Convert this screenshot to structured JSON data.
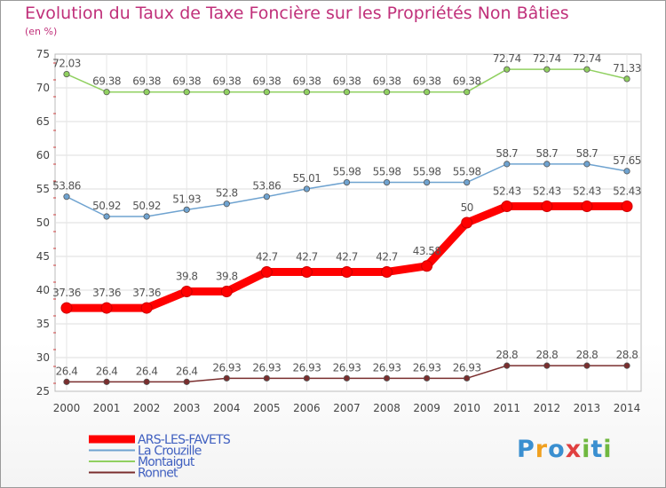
{
  "title": "Evolution du Taux de Taxe Foncière sur les Propriétés Non Bâties",
  "subtitle": "(en %)",
  "logo": {
    "letters": [
      "P",
      "r",
      "o",
      "x",
      "i",
      "t",
      "i"
    ],
    "colors": [
      "#3a8fd0",
      "#f0a020",
      "#3a8fd0",
      "#e04040",
      "#70b840",
      "#3a8fd0",
      "#70b840"
    ]
  },
  "chart_data": {
    "type": "line",
    "title": "Evolution du Taux de Taxe Foncière sur les Propriétés Non Bâties",
    "ylabel": "(en %)",
    "xlabel": "",
    "ylim": [
      25,
      75
    ],
    "yticks": [
      25,
      30,
      35,
      40,
      45,
      50,
      55,
      60,
      65,
      70,
      75
    ],
    "grid": true,
    "legend": "bottom-left",
    "x": [
      "2000",
      "2001",
      "2002",
      "2003",
      "2004",
      "2005",
      "2006",
      "2007",
      "2008",
      "2009",
      "2010",
      "2011",
      "2012",
      "2013",
      "2014"
    ],
    "series": [
      {
        "name": "ARS-LES-FAVETS",
        "color": "#ff0000",
        "thick": true,
        "values": [
          37.36,
          37.36,
          37.36,
          39.8,
          39.8,
          42.7,
          42.7,
          42.7,
          42.7,
          43.58,
          50,
          52.43,
          52.43,
          52.43,
          52.43
        ],
        "labels": [
          "37.36",
          "37.36",
          "37.36",
          "39.8",
          "39.8",
          "42.7",
          "42.7",
          "42.7",
          "42.7",
          "43.58",
          "50",
          "52.43",
          "52.43",
          "52.43",
          "52.43"
        ]
      },
      {
        "name": "La Crouzille",
        "color": "#6fa3d0",
        "thick": false,
        "values": [
          53.86,
          50.92,
          50.92,
          51.93,
          52.8,
          53.86,
          55.01,
          55.98,
          55.98,
          55.98,
          55.98,
          58.7,
          58.7,
          58.7,
          57.65
        ],
        "labels": [
          "53.86",
          "50.92",
          "50.92",
          "51.93",
          "52.8",
          "53.86",
          "55.01",
          "55.98",
          "55.98",
          "55.98",
          "55.98",
          "58.7",
          "58.7",
          "58.7",
          "57.65"
        ]
      },
      {
        "name": "Montaigut",
        "color": "#90d060",
        "thick": false,
        "values": [
          72.03,
          69.38,
          69.38,
          69.38,
          69.38,
          69.38,
          69.38,
          69.38,
          69.38,
          69.38,
          69.38,
          72.74,
          72.74,
          72.74,
          71.33
        ],
        "labels": [
          "72.03",
          "69.38",
          "69.38",
          "69.38",
          "69.38",
          "69.38",
          "69.38",
          "69.38",
          "69.38",
          "69.38",
          "69.38",
          "72.74",
          "72.74",
          "72.74",
          "71.33"
        ]
      },
      {
        "name": "Ronnet",
        "color": "#7a2e2e",
        "thick": false,
        "values": [
          26.4,
          26.4,
          26.4,
          26.4,
          26.93,
          26.93,
          26.93,
          26.93,
          26.93,
          26.93,
          26.93,
          28.8,
          28.8,
          28.8,
          28.8
        ],
        "labels": [
          "26.4",
          "26.4",
          "26.4",
          "26.4",
          "26.93",
          "26.93",
          "26.93",
          "26.93",
          "26.93",
          "26.93",
          "26.93",
          "28.8",
          "28.8",
          "28.8",
          "28.8"
        ]
      }
    ]
  }
}
